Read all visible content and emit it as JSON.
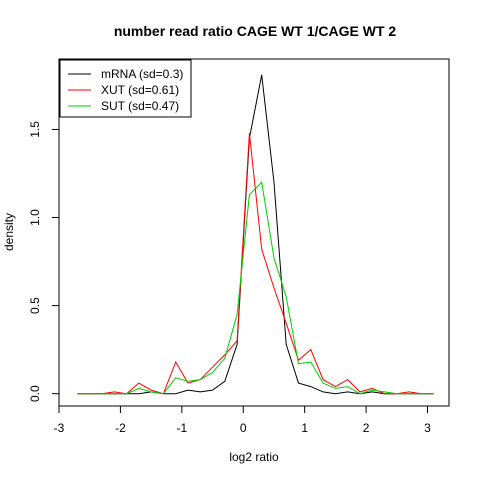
{
  "chart_data": {
    "type": "line",
    "title": "number read ratio CAGE WT 1/CAGE WT 2",
    "xlabel": "log2 ratio",
    "ylabel": "density",
    "xlim": [
      -3,
      3.35
    ],
    "ylim": [
      -0.07,
      1.9
    ],
    "xticks": [
      -3,
      -2,
      -1,
      0,
      1,
      2,
      3
    ],
    "xtick_labels": [
      "-3",
      "-2",
      "-1",
      "0",
      "1",
      "2",
      "3"
    ],
    "yticks": [
      0.0,
      0.5,
      1.0,
      1.5
    ],
    "ytick_labels": [
      "0.0",
      "0.5",
      "1.0",
      "1.5"
    ],
    "grid": false,
    "legend_position": "top-left",
    "series": [
      {
        "name": "mRNA (sd=0.3)",
        "color": "#000000",
        "x": [
          -2.7,
          -2.5,
          -2.3,
          -2.1,
          -1.9,
          -1.7,
          -1.5,
          -1.3,
          -1.1,
          -0.9,
          -0.7,
          -0.5,
          -0.3,
          -0.1,
          0.1,
          0.3,
          0.5,
          0.7,
          0.9,
          1.1,
          1.3,
          1.5,
          1.7,
          1.9,
          2.1,
          2.3,
          2.5,
          2.7,
          2.9,
          3.1
        ],
        "y": [
          0.0,
          0.0,
          0.0,
          0.0,
          0.0,
          0.0,
          0.01,
          0.0,
          0.0,
          0.02,
          0.01,
          0.02,
          0.07,
          0.28,
          1.45,
          1.81,
          1.2,
          0.28,
          0.06,
          0.04,
          0.01,
          0.0,
          0.01,
          0.0,
          0.01,
          0.0,
          0.0,
          0.0,
          0.0,
          0.0
        ]
      },
      {
        "name": "XUT (sd=0.61)",
        "color": "#ff0000",
        "x": [
          -2.7,
          -2.5,
          -2.3,
          -2.1,
          -1.9,
          -1.7,
          -1.5,
          -1.3,
          -1.1,
          -0.9,
          -0.7,
          -0.5,
          -0.3,
          -0.1,
          0.1,
          0.3,
          0.5,
          0.7,
          0.9,
          1.1,
          1.3,
          1.5,
          1.7,
          1.9,
          2.1,
          2.3,
          2.5,
          2.7,
          2.9,
          3.1
        ],
        "y": [
          0.0,
          0.0,
          0.0,
          0.01,
          0.0,
          0.06,
          0.02,
          0.0,
          0.18,
          0.06,
          0.08,
          0.15,
          0.22,
          0.3,
          1.48,
          0.82,
          0.6,
          0.4,
          0.19,
          0.25,
          0.08,
          0.04,
          0.08,
          0.01,
          0.03,
          0.0,
          0.0,
          0.01,
          0.0,
          0.0
        ]
      },
      {
        "name": "SUT (sd=0.47)",
        "color": "#00cc00",
        "x": [
          -2.7,
          -2.5,
          -2.3,
          -2.1,
          -1.9,
          -1.7,
          -1.5,
          -1.3,
          -1.1,
          -0.9,
          -0.7,
          -0.5,
          -0.3,
          -0.1,
          0.1,
          0.3,
          0.5,
          0.7,
          0.9,
          1.1,
          1.3,
          1.5,
          1.7,
          1.9,
          2.1,
          2.3,
          2.5,
          2.7,
          2.9,
          3.1
        ],
        "y": [
          0.0,
          0.0,
          0.0,
          0.0,
          0.0,
          0.03,
          0.01,
          0.0,
          0.09,
          0.07,
          0.08,
          0.12,
          0.2,
          0.45,
          1.13,
          1.2,
          0.77,
          0.55,
          0.17,
          0.18,
          0.06,
          0.03,
          0.04,
          0.0,
          0.02,
          0.01,
          0.0,
          0.0,
          0.0,
          0.0
        ]
      }
    ]
  }
}
